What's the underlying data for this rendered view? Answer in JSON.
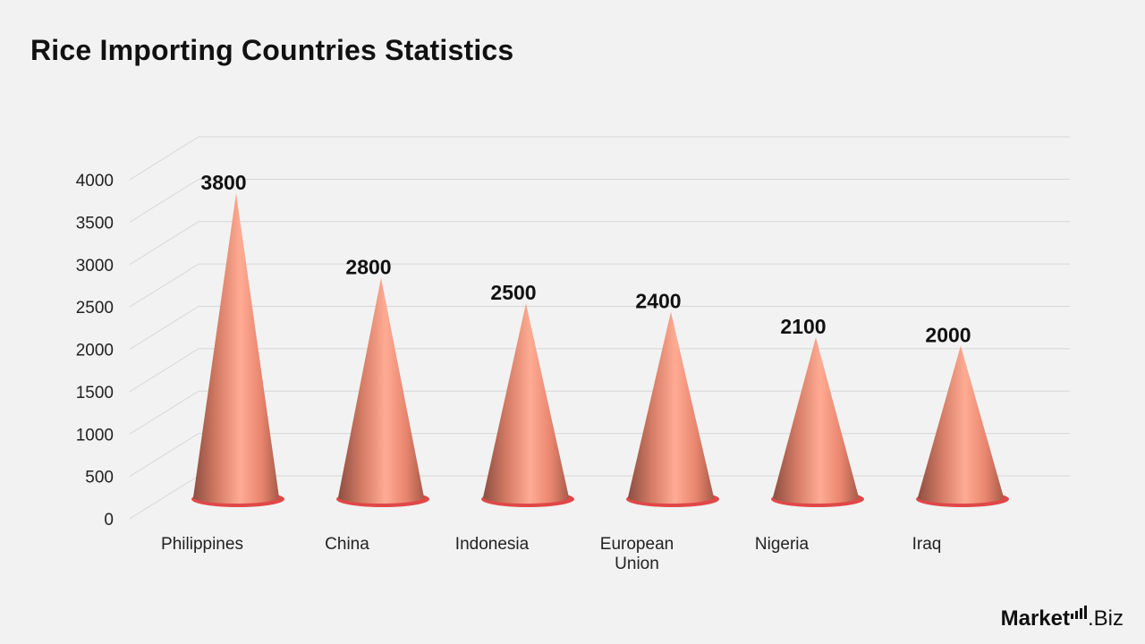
{
  "title": "Rice Importing Countries Statistics",
  "brand": {
    "part1": "Market",
    "part2": ".Biz"
  },
  "colors": {
    "cone_light": "#ffab93",
    "cone_mid": "#e8846d",
    "cone_dark": "#8d4e40",
    "base_ring": "#e04848",
    "grid": "#d6d6d6"
  },
  "chart_data": {
    "type": "bar",
    "bar_shape": "cone",
    "categories": [
      "Philippines",
      "China",
      "Indonesia",
      "European Union",
      "Nigeria",
      "Iraq"
    ],
    "values": [
      3800,
      2800,
      2500,
      2400,
      2100,
      2000
    ],
    "data_labels": [
      "3800",
      "2800",
      "2500",
      "2400",
      "2100",
      "2000"
    ],
    "yticks": [
      0,
      500,
      1000,
      1500,
      2000,
      2500,
      3000,
      3500,
      4000
    ],
    "ylim": [
      0,
      4000
    ],
    "grid": true,
    "legend": "none"
  }
}
